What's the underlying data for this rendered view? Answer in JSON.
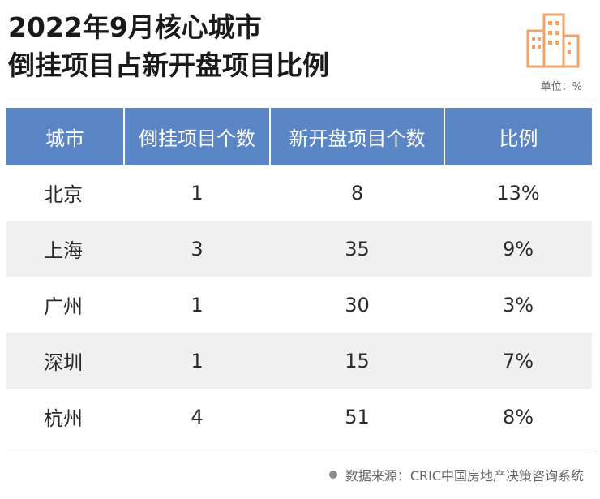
{
  "title": {
    "line1": "2022年9月核心城市",
    "line2": "倒挂项目占新开盘项目比例"
  },
  "unit": "单位：%",
  "source": "数据来源：CRIC中国房地产决策咨询系统",
  "colors": {
    "header_bg": "#5b86c5",
    "logo": "#f0a36a"
  },
  "icons": {
    "logo": "buildings-icon",
    "bullet": "dot-icon"
  },
  "chart_data": {
    "type": "table",
    "title": "2022年9月核心城市倒挂项目占新开盘项目比例",
    "columns": [
      "城市",
      "倒挂项目个数",
      "新开盘项目个数",
      "比例"
    ],
    "rows": [
      [
        "北京",
        "1",
        "8",
        "13%"
      ],
      [
        "上海",
        "3",
        "35",
        "9%"
      ],
      [
        "广州",
        "1",
        "30",
        "3%"
      ],
      [
        "深圳",
        "1",
        "15",
        "7%"
      ],
      [
        "杭州",
        "4",
        "51",
        "8%"
      ]
    ]
  }
}
